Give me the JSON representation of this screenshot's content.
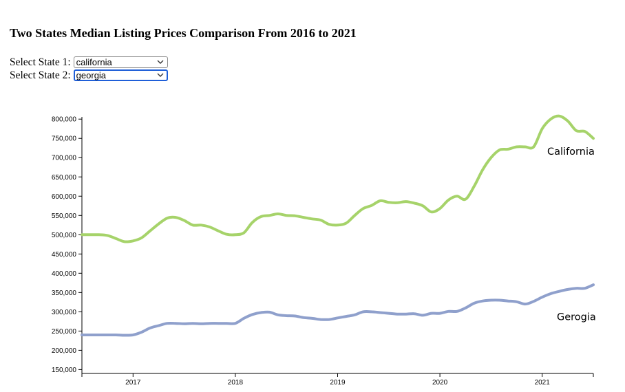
{
  "page": {
    "title": "Two States Median Listing Prices Comparison From 2016 to 2021"
  },
  "controls": {
    "state1": {
      "label": "Select State 1:",
      "value": "california"
    },
    "state2": {
      "label": "Select State 2:",
      "value": "georgia"
    }
  },
  "chart_data": {
    "type": "line",
    "title": "",
    "xlabel": "",
    "ylabel": "",
    "xlim": [
      "2016-07",
      "2021-07"
    ],
    "ylim": [
      140000,
      820000
    ],
    "grid": false,
    "x_ticks": [
      "2017",
      "2018",
      "2019",
      "2020",
      "2021"
    ],
    "y_ticks": [
      150000,
      200000,
      250000,
      300000,
      350000,
      400000,
      450000,
      500000,
      550000,
      600000,
      650000,
      700000,
      750000,
      800000
    ],
    "x": [
      "2016-07",
      "2016-08",
      "2016-09",
      "2016-10",
      "2016-11",
      "2016-12",
      "2017-01",
      "2017-02",
      "2017-03",
      "2017-04",
      "2017-05",
      "2017-06",
      "2017-07",
      "2017-08",
      "2017-09",
      "2017-10",
      "2017-11",
      "2017-12",
      "2018-01",
      "2018-02",
      "2018-03",
      "2018-04",
      "2018-05",
      "2018-06",
      "2018-07",
      "2018-08",
      "2018-09",
      "2018-10",
      "2018-11",
      "2018-12",
      "2019-01",
      "2019-02",
      "2019-03",
      "2019-04",
      "2019-05",
      "2019-06",
      "2019-07",
      "2019-08",
      "2019-09",
      "2019-10",
      "2019-11",
      "2019-12",
      "2020-01",
      "2020-02",
      "2020-03",
      "2020-04",
      "2020-05",
      "2020-06",
      "2020-07",
      "2020-08",
      "2020-09",
      "2020-10",
      "2020-11",
      "2020-12",
      "2021-01",
      "2021-02",
      "2021-03",
      "2021-04",
      "2021-05",
      "2021-06",
      "2021-07"
    ],
    "series": [
      {
        "name": "California",
        "color": "#a6d36a",
        "values": [
          500000,
          500000,
          500000,
          498000,
          490000,
          482000,
          484000,
          492000,
          510000,
          528000,
          543000,
          545000,
          537000,
          525000,
          525000,
          520000,
          510000,
          501000,
          500000,
          505000,
          532000,
          547000,
          550000,
          554000,
          550000,
          549000,
          545000,
          541000,
          538000,
          527000,
          525000,
          530000,
          550000,
          568000,
          576000,
          588000,
          584000,
          583000,
          586000,
          582000,
          575000,
          559000,
          568000,
          590000,
          600000,
          592000,
          625000,
          668000,
          700000,
          720000,
          722000,
          728000,
          728000,
          728000,
          775000,
          800000,
          808000,
          795000,
          770000,
          768000,
          750000
        ]
      },
      {
        "name": "Gerogia",
        "color": "#8fa0cc",
        "values": [
          240000,
          240000,
          240000,
          240000,
          240000,
          239000,
          240000,
          247000,
          258000,
          264000,
          270000,
          270000,
          269000,
          270000,
          269000,
          270000,
          270000,
          270000,
          270000,
          283000,
          293000,
          298000,
          299000,
          292000,
          290000,
          289000,
          285000,
          283000,
          280000,
          280000,
          284000,
          288000,
          292000,
          300000,
          300000,
          298000,
          296000,
          294000,
          294000,
          295000,
          291000,
          296000,
          296000,
          301000,
          301000,
          310000,
          322000,
          328000,
          330000,
          330000,
          328000,
          326000,
          320000,
          327000,
          338000,
          347000,
          353000,
          358000,
          361000,
          361000,
          370000
        ]
      }
    ]
  }
}
